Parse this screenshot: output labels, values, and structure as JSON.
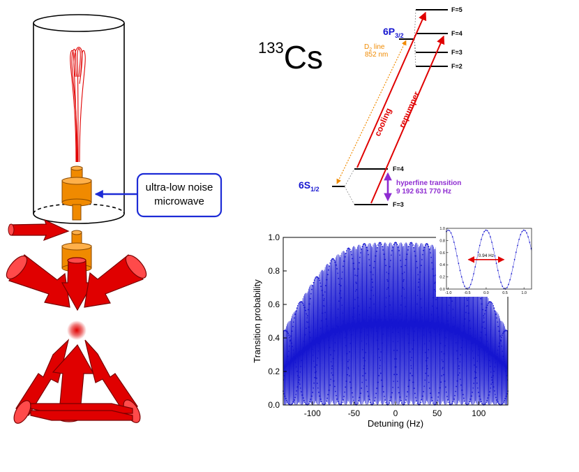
{
  "fountain": {
    "microwave_callout": [
      "ultra-low noise",
      "microwave"
    ],
    "colors": {
      "laser": "#e00000",
      "cavity": "#f08a00",
      "callout": "#1d2bd6"
    }
  },
  "level_diagram": {
    "isotope_mass": "133",
    "element": "Cs",
    "excited_state": {
      "base": "6P",
      "sub": "3/2"
    },
    "ground_state": {
      "base": "6S",
      "sub": "1/2"
    },
    "excited_levels": [
      "F=5",
      "F=4",
      "F=3",
      "F=2"
    ],
    "ground_levels": [
      "F=4",
      "F=3"
    ],
    "d2_line": {
      "name": "D",
      "sub": "2",
      "suffix": " line",
      "wavelength": "852 nm"
    },
    "cooling_label": "cooling",
    "repumper_label": "repumper",
    "hyperfine_label": "hyperfine transition",
    "hyperfine_freq": "9 192 631 770 Hz",
    "colors": {
      "state": "#1515d0",
      "d2": "#f08a00",
      "laser": "#e00000",
      "hyperfine": "#8e2bd1"
    }
  },
  "chart_data": [
    {
      "type": "line",
      "name": "main",
      "xlabel": "Detuning (Hz)",
      "ylabel": "Transition probability",
      "xlim": [
        -135,
        135
      ],
      "ylim": [
        0,
        1.0
      ],
      "xticks": [
        -100,
        -50,
        0,
        50,
        100
      ],
      "yticks": [
        0.0,
        0.2,
        0.4,
        0.6,
        0.8,
        1.0
      ],
      "ytick_labels": [
        "0.0",
        "0.2",
        "0.4",
        "0.6",
        "0.8",
        "1.0"
      ],
      "model": "Ramsey fringes with Rabi pulse envelope",
      "rabi_pulse_area": "pi/2",
      "envelope_peak": 0.97,
      "envelope_side_lobe": {
        "x": [
          -57,
          57
        ],
        "y": 0.2
      },
      "color": "#1515d0",
      "grid": false
    },
    {
      "type": "scatter",
      "name": "inset",
      "xlim": [
        -1.05,
        1.2
      ],
      "ylim": [
        0,
        1.0
      ],
      "xticks": [
        -1.0,
        -0.5,
        0.0,
        0.5,
        1.0
      ],
      "yticks": [
        0.0,
        0.2,
        0.4,
        0.6,
        0.8,
        1.0
      ],
      "ytick_labels": [
        "0.0",
        "0.2",
        "0.4",
        "0.6",
        "0.8",
        "1.0"
      ],
      "fringe_period_hz": 1.0,
      "peak": 0.97,
      "width_annotation": "0.94 Hz",
      "width_marker": {
        "x": [
          -0.47,
          0.47
        ],
        "y": 0.485
      },
      "color": "#1515d0",
      "grid": false
    }
  ]
}
